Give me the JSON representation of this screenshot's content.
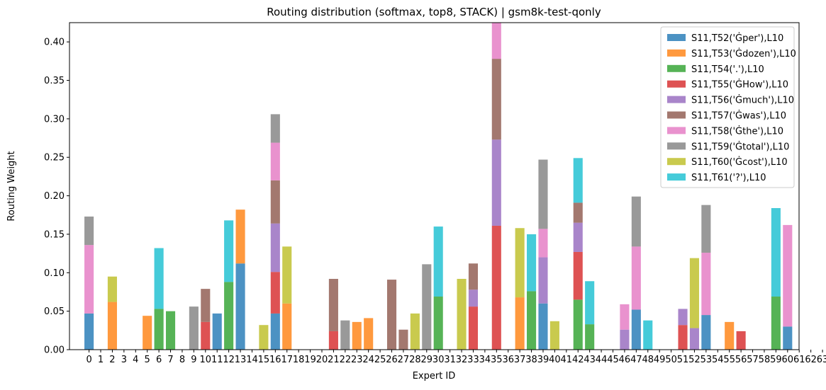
{
  "chart_data": {
    "type": "bar",
    "stacked": true,
    "title": "Routing distribution (softmax, top8, STACK) | gsm8k-test-qonly",
    "xlabel": "Expert ID",
    "ylabel": "Routing Weight",
    "ylim": [
      0,
      0.425
    ],
    "yticks": [
      "0.00",
      "0.05",
      "0.10",
      "0.15",
      "0.20",
      "0.25",
      "0.30",
      "0.35",
      "0.40"
    ],
    "ytick_values": [
      0,
      0.05,
      0.1,
      0.15,
      0.2,
      0.25,
      0.3,
      0.35,
      0.4
    ],
    "grid": false,
    "legend_position": "top-right",
    "categories": [
      "0",
      "1",
      "2",
      "3",
      "4",
      "5",
      "6",
      "7",
      "8",
      "9",
      "10",
      "11",
      "12",
      "13",
      "14",
      "15",
      "16",
      "17",
      "18",
      "19",
      "20",
      "21",
      "22",
      "23",
      "24",
      "25",
      "26",
      "27",
      "28",
      "29",
      "30",
      "31",
      "32",
      "33",
      "34",
      "35",
      "36",
      "37",
      "38",
      "39",
      "40",
      "41",
      "42",
      "43",
      "44",
      "45",
      "46",
      "47",
      "48",
      "49",
      "50",
      "51",
      "52",
      "53",
      "54",
      "55",
      "56",
      "57",
      "58",
      "59",
      "60",
      "61",
      "62",
      "63"
    ],
    "series": [
      {
        "name": "S11,T52('Ġper'),L10",
        "color": "#1f77b4",
        "points": [
          [
            0,
            0.047
          ],
          [
            11,
            0.047
          ],
          [
            13,
            0.112
          ],
          [
            16,
            0.047
          ],
          [
            39,
            0.06
          ],
          [
            47,
            0.052
          ],
          [
            53,
            0.045
          ],
          [
            60,
            0.03
          ]
        ]
      },
      {
        "name": "S11,T53('Ġdozen'),L10",
        "color": "#ff7f0e",
        "points": [
          [
            2,
            0.062
          ],
          [
            5,
            0.044
          ],
          [
            13,
            0.07
          ],
          [
            17,
            0.06
          ],
          [
            23,
            0.036
          ],
          [
            24,
            0.041
          ],
          [
            37,
            0.068
          ],
          [
            55,
            0.036
          ]
        ]
      },
      {
        "name": "S11,T54('.'),L10",
        "color": "#2ca02c",
        "points": [
          [
            6,
            0.053
          ],
          [
            7,
            0.05
          ],
          [
            12,
            0.088
          ],
          [
            30,
            0.069
          ],
          [
            38,
            0.076
          ],
          [
            42,
            0.065
          ],
          [
            43,
            0.033
          ],
          [
            59,
            0.069
          ]
        ]
      },
      {
        "name": "S11,T55('ĠHow'),L10",
        "color": "#d62728",
        "points": [
          [
            10,
            0.036
          ],
          [
            16,
            0.054
          ],
          [
            21,
            0.024
          ],
          [
            33,
            0.056
          ],
          [
            35,
            0.161
          ],
          [
            42,
            0.062
          ],
          [
            51,
            0.032
          ],
          [
            56,
            0.024
          ]
        ]
      },
      {
        "name": "S11,T56('Ġmuch'),L10",
        "color": "#9467bd",
        "points": [
          [
            16,
            0.063
          ],
          [
            33,
            0.022
          ],
          [
            35,
            0.112
          ],
          [
            39,
            0.06
          ],
          [
            42,
            0.038
          ],
          [
            46,
            0.026
          ],
          [
            51,
            0.021
          ],
          [
            52,
            0.028
          ]
        ]
      },
      {
        "name": "S11,T57('Ġwas'),L10",
        "color": "#8c564b",
        "points": [
          [
            10,
            0.043
          ],
          [
            16,
            0.056
          ],
          [
            21,
            0.068
          ],
          [
            26,
            0.091
          ],
          [
            27,
            0.026
          ],
          [
            33,
            0.034
          ],
          [
            35,
            0.105
          ],
          [
            42,
            0.026
          ]
        ]
      },
      {
        "name": "S11,T58('Ġthe'),L10",
        "color": "#e377c2",
        "points": [
          [
            0,
            0.089
          ],
          [
            16,
            0.049
          ],
          [
            35,
            0.047
          ],
          [
            39,
            0.037
          ],
          [
            46,
            0.033
          ],
          [
            47,
            0.082
          ],
          [
            53,
            0.081
          ],
          [
            60,
            0.132
          ]
        ]
      },
      {
        "name": "S11,T59('Ġtotal'),L10",
        "color": "#7f7f7f",
        "points": [
          [
            0,
            0.037
          ],
          [
            9,
            0.056
          ],
          [
            16,
            0.037
          ],
          [
            22,
            0.038
          ],
          [
            29,
            0.111
          ],
          [
            39,
            0.09
          ],
          [
            47,
            0.065
          ],
          [
            53,
            0.062
          ]
        ]
      },
      {
        "name": "S11,T60('Ġcost'),L10",
        "color": "#bcbd22",
        "points": [
          [
            2,
            0.033
          ],
          [
            15,
            0.032
          ],
          [
            17,
            0.074
          ],
          [
            28,
            0.047
          ],
          [
            32,
            0.092
          ],
          [
            37,
            0.09
          ],
          [
            40,
            0.037
          ],
          [
            52,
            0.091
          ]
        ]
      },
      {
        "name": "S11,T61('?'),L10",
        "color": "#17becf",
        "points": [
          [
            6,
            0.079
          ],
          [
            12,
            0.08
          ],
          [
            30,
            0.091
          ],
          [
            38,
            0.074
          ],
          [
            42,
            0.058
          ],
          [
            43,
            0.056
          ],
          [
            48,
            0.038
          ],
          [
            59,
            0.115
          ]
        ]
      }
    ]
  }
}
